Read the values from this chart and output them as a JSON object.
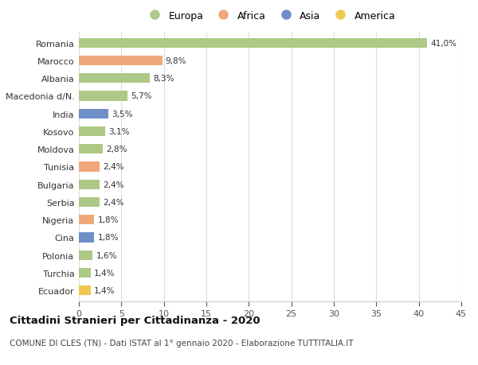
{
  "countries": [
    "Romania",
    "Marocco",
    "Albania",
    "Macedonia d/N.",
    "India",
    "Kosovo",
    "Moldova",
    "Tunisia",
    "Bulgaria",
    "Serbia",
    "Nigeria",
    "Cina",
    "Polonia",
    "Turchia",
    "Ecuador"
  ],
  "values": [
    41.0,
    9.8,
    8.3,
    5.7,
    3.5,
    3.1,
    2.8,
    2.4,
    2.4,
    2.4,
    1.8,
    1.8,
    1.6,
    1.4,
    1.4
  ],
  "labels": [
    "41,0%",
    "9,8%",
    "8,3%",
    "5,7%",
    "3,5%",
    "3,1%",
    "2,8%",
    "2,4%",
    "2,4%",
    "2,4%",
    "1,8%",
    "1,8%",
    "1,6%",
    "1,4%",
    "1,4%"
  ],
  "continents": [
    "Europa",
    "Africa",
    "Europa",
    "Europa",
    "Asia",
    "Europa",
    "Europa",
    "Africa",
    "Europa",
    "Europa",
    "Africa",
    "Asia",
    "Europa",
    "Europa",
    "America"
  ],
  "colors": {
    "Europa": "#adc986",
    "Africa": "#f0a87a",
    "Asia": "#6e8ec8",
    "America": "#f0c850"
  },
  "legend_order": [
    "Europa",
    "Africa",
    "Asia",
    "America"
  ],
  "xlim": [
    0,
    45
  ],
  "xticks": [
    0,
    5,
    10,
    15,
    20,
    25,
    30,
    35,
    40,
    45
  ],
  "title": "Cittadini Stranieri per Cittadinanza - 2020",
  "subtitle": "COMUNE DI CLES (TN) - Dati ISTAT al 1° gennaio 2020 - Elaborazione TUTTITALIA.IT",
  "background_color": "#ffffff",
  "grid_color": "#dddddd"
}
